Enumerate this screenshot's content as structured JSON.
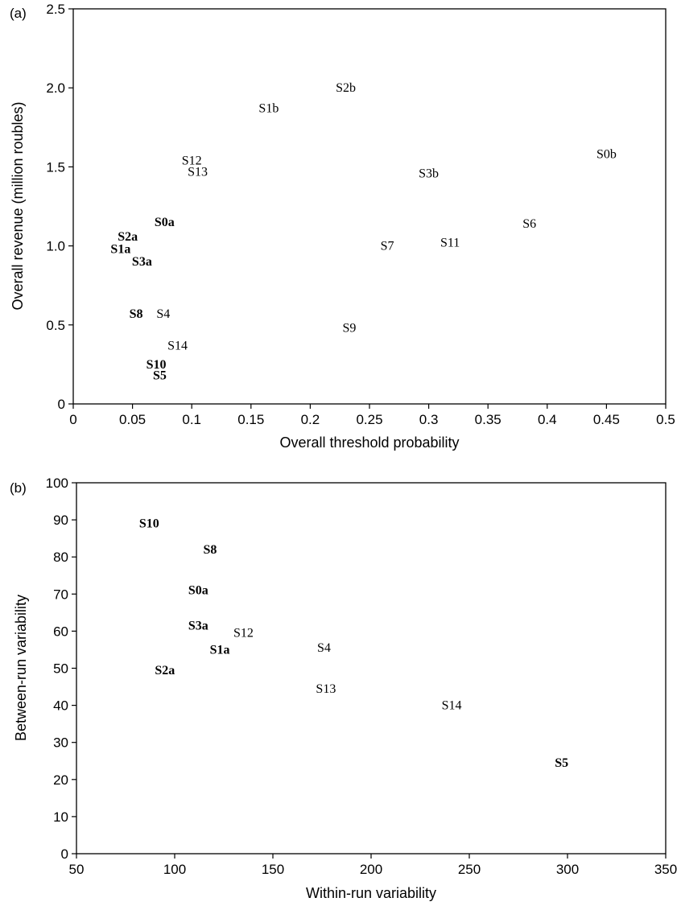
{
  "chart_data": [
    {
      "panel": "(a)",
      "type": "scatter",
      "xlabel": "Overall threshold probability",
      "ylabel": "Overall revenue (million roubles)",
      "xlim": [
        0,
        0.5
      ],
      "ylim": [
        0,
        2.5
      ],
      "xticks": [
        "0",
        "0.05",
        "0.1",
        "0.15",
        "0.2",
        "0.25",
        "0.3",
        "0.35",
        "0.4",
        "0.45",
        "0.5"
      ],
      "yticks": [
        "0",
        "0.5",
        "1.0",
        "1.5",
        "2.0",
        "2.5"
      ],
      "points": [
        {
          "label": "S2b",
          "x": 0.23,
          "y": 2.0,
          "bold": false
        },
        {
          "label": "S1b",
          "x": 0.165,
          "y": 1.87,
          "bold": false
        },
        {
          "label": "S0b",
          "x": 0.45,
          "y": 1.58,
          "bold": false
        },
        {
          "label": "S12",
          "x": 0.1,
          "y": 1.54,
          "bold": false
        },
        {
          "label": "S13",
          "x": 0.105,
          "y": 1.47,
          "bold": false
        },
        {
          "label": "S3b",
          "x": 0.3,
          "y": 1.46,
          "bold": false
        },
        {
          "label": "S0a",
          "x": 0.077,
          "y": 1.15,
          "bold": true
        },
        {
          "label": "S6",
          "x": 0.385,
          "y": 1.14,
          "bold": false
        },
        {
          "label": "S2a",
          "x": 0.046,
          "y": 1.06,
          "bold": true
        },
        {
          "label": "S11",
          "x": 0.318,
          "y": 1.02,
          "bold": false
        },
        {
          "label": "S7",
          "x": 0.265,
          "y": 1.0,
          "bold": false
        },
        {
          "label": "S1a",
          "x": 0.04,
          "y": 0.98,
          "bold": true
        },
        {
          "label": "S3a",
          "x": 0.058,
          "y": 0.9,
          "bold": true
        },
        {
          "label": "S8",
          "x": 0.053,
          "y": 0.57,
          "bold": true
        },
        {
          "label": "S4",
          "x": 0.076,
          "y": 0.57,
          "bold": false
        },
        {
          "label": "S9",
          "x": 0.233,
          "y": 0.48,
          "bold": false
        },
        {
          "label": "S14",
          "x": 0.088,
          "y": 0.37,
          "bold": false
        },
        {
          "label": "S10",
          "x": 0.07,
          "y": 0.25,
          "bold": true
        },
        {
          "label": "S5",
          "x": 0.073,
          "y": 0.18,
          "bold": true
        }
      ]
    },
    {
      "panel": "(b)",
      "type": "scatter",
      "xlabel": "Within-run variability",
      "ylabel": "Between-run variability",
      "xlim": [
        50,
        350
      ],
      "ylim": [
        0,
        100
      ],
      "xticks": [
        "50",
        "100",
        "150",
        "200",
        "250",
        "300",
        "350"
      ],
      "yticks": [
        "0",
        "10",
        "20",
        "30",
        "40",
        "50",
        "60",
        "70",
        "80",
        "90",
        "100"
      ],
      "points": [
        {
          "label": "S10",
          "x": 87,
          "y": 89,
          "bold": true
        },
        {
          "label": "S8",
          "x": 118,
          "y": 82,
          "bold": true
        },
        {
          "label": "S0a",
          "x": 112,
          "y": 71,
          "bold": true
        },
        {
          "label": "S3a",
          "x": 112,
          "y": 61.5,
          "bold": true
        },
        {
          "label": "S12",
          "x": 135,
          "y": 59.5,
          "bold": false
        },
        {
          "label": "S1a",
          "x": 123,
          "y": 55,
          "bold": true
        },
        {
          "label": "S4",
          "x": 176,
          "y": 55.5,
          "bold": false
        },
        {
          "label": "S2a",
          "x": 95,
          "y": 49.5,
          "bold": true
        },
        {
          "label": "S13",
          "x": 177,
          "y": 44.5,
          "bold": false
        },
        {
          "label": "S14",
          "x": 241,
          "y": 40,
          "bold": false
        },
        {
          "label": "S5",
          "x": 297,
          "y": 24.5,
          "bold": true
        }
      ]
    }
  ]
}
